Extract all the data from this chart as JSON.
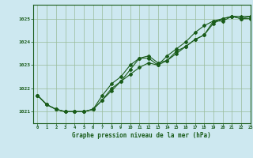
{
  "title": "Graphe pression niveau de la mer (hPa)",
  "bg_color": "#cde8f0",
  "line_color": "#1a5c1a",
  "grid_color": "#99bb99",
  "xlim": [
    -0.5,
    23
  ],
  "ylim": [
    1020.5,
    1025.6
  ],
  "yticks": [
    1021,
    1022,
    1023,
    1024,
    1025
  ],
  "xticks": [
    0,
    1,
    2,
    3,
    4,
    5,
    6,
    7,
    8,
    9,
    10,
    11,
    12,
    13,
    14,
    15,
    16,
    17,
    18,
    19,
    20,
    21,
    22,
    23
  ],
  "series1": [
    1021.7,
    1021.3,
    1021.1,
    1021.0,
    1021.0,
    1021.0,
    1021.1,
    1021.5,
    1021.9,
    1022.3,
    1022.8,
    1023.3,
    1023.4,
    1023.1,
    1023.2,
    1023.6,
    1023.8,
    1024.1,
    1024.3,
    1024.9,
    1024.9,
    1025.1,
    1025.0,
    1025.1
  ],
  "series2": [
    1021.7,
    1021.3,
    1021.1,
    1021.0,
    1021.0,
    1021.0,
    1021.1,
    1021.7,
    1022.2,
    1022.5,
    1023.0,
    1023.3,
    1023.3,
    1023.0,
    1023.4,
    1023.7,
    1024.0,
    1024.4,
    1024.7,
    1024.9,
    1025.0,
    1025.1,
    1025.1,
    1025.1
  ],
  "series3": [
    1021.7,
    1021.3,
    1021.1,
    1021.0,
    1021.0,
    1021.0,
    1021.1,
    1021.5,
    1022.0,
    1022.3,
    1022.6,
    1022.9,
    1023.1,
    1023.0,
    1023.2,
    1023.5,
    1023.8,
    1024.1,
    1024.3,
    1024.8,
    1025.0,
    1025.1,
    1025.0,
    1025.0
  ]
}
